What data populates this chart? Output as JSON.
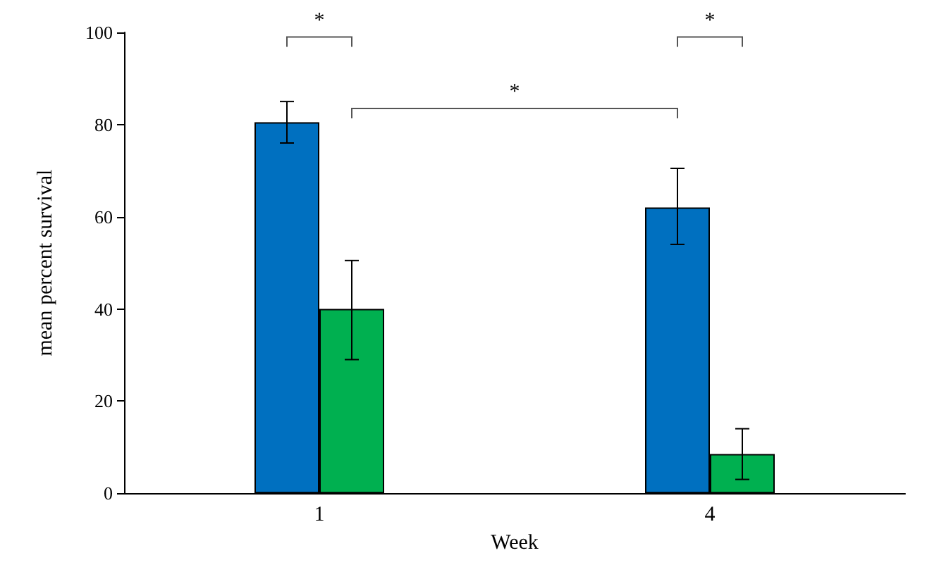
{
  "chart_data": {
    "type": "bar",
    "xlabel": "Week",
    "ylabel": "mean percent survival",
    "categories": [
      "1",
      "4"
    ],
    "series": [
      {
        "color": "#0070c0",
        "values": [
          80.5,
          62
        ],
        "errors": [
          [
            76,
            85
          ],
          [
            54,
            70.5
          ]
        ]
      },
      {
        "color": "#00b050",
        "values": [
          40,
          8.5
        ],
        "errors": [
          [
            29,
            50.5
          ],
          [
            3,
            14
          ]
        ]
      }
    ],
    "ylim": [
      0,
      100
    ],
    "yticks": [
      0,
      20,
      40,
      60,
      80,
      100
    ],
    "grid": false,
    "annotations": [
      "*",
      "*",
      "*"
    ]
  }
}
